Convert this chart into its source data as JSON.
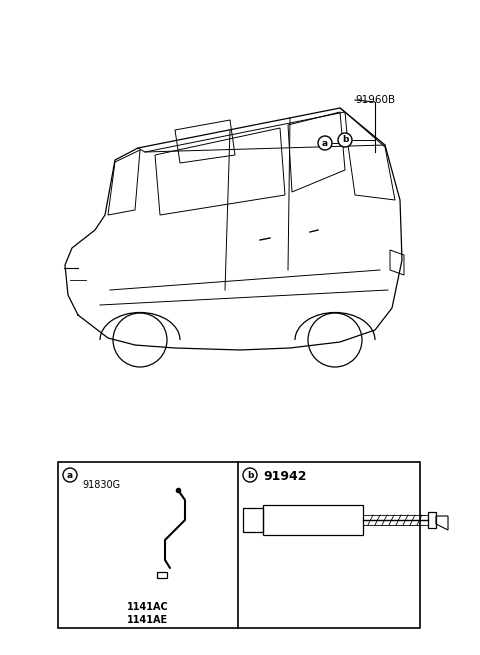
{
  "bg_color": "#ffffff",
  "line_color": "#000000",
  "car_label": "91960B",
  "part_a_label": "91830G",
  "part_a_sub1": "1141AC",
  "part_a_sub2": "1141AE",
  "part_b_label": "91942",
  "circle_a": "a",
  "circle_b": "b",
  "fig_width": 4.8,
  "fig_height": 6.55,
  "dpi": 100
}
